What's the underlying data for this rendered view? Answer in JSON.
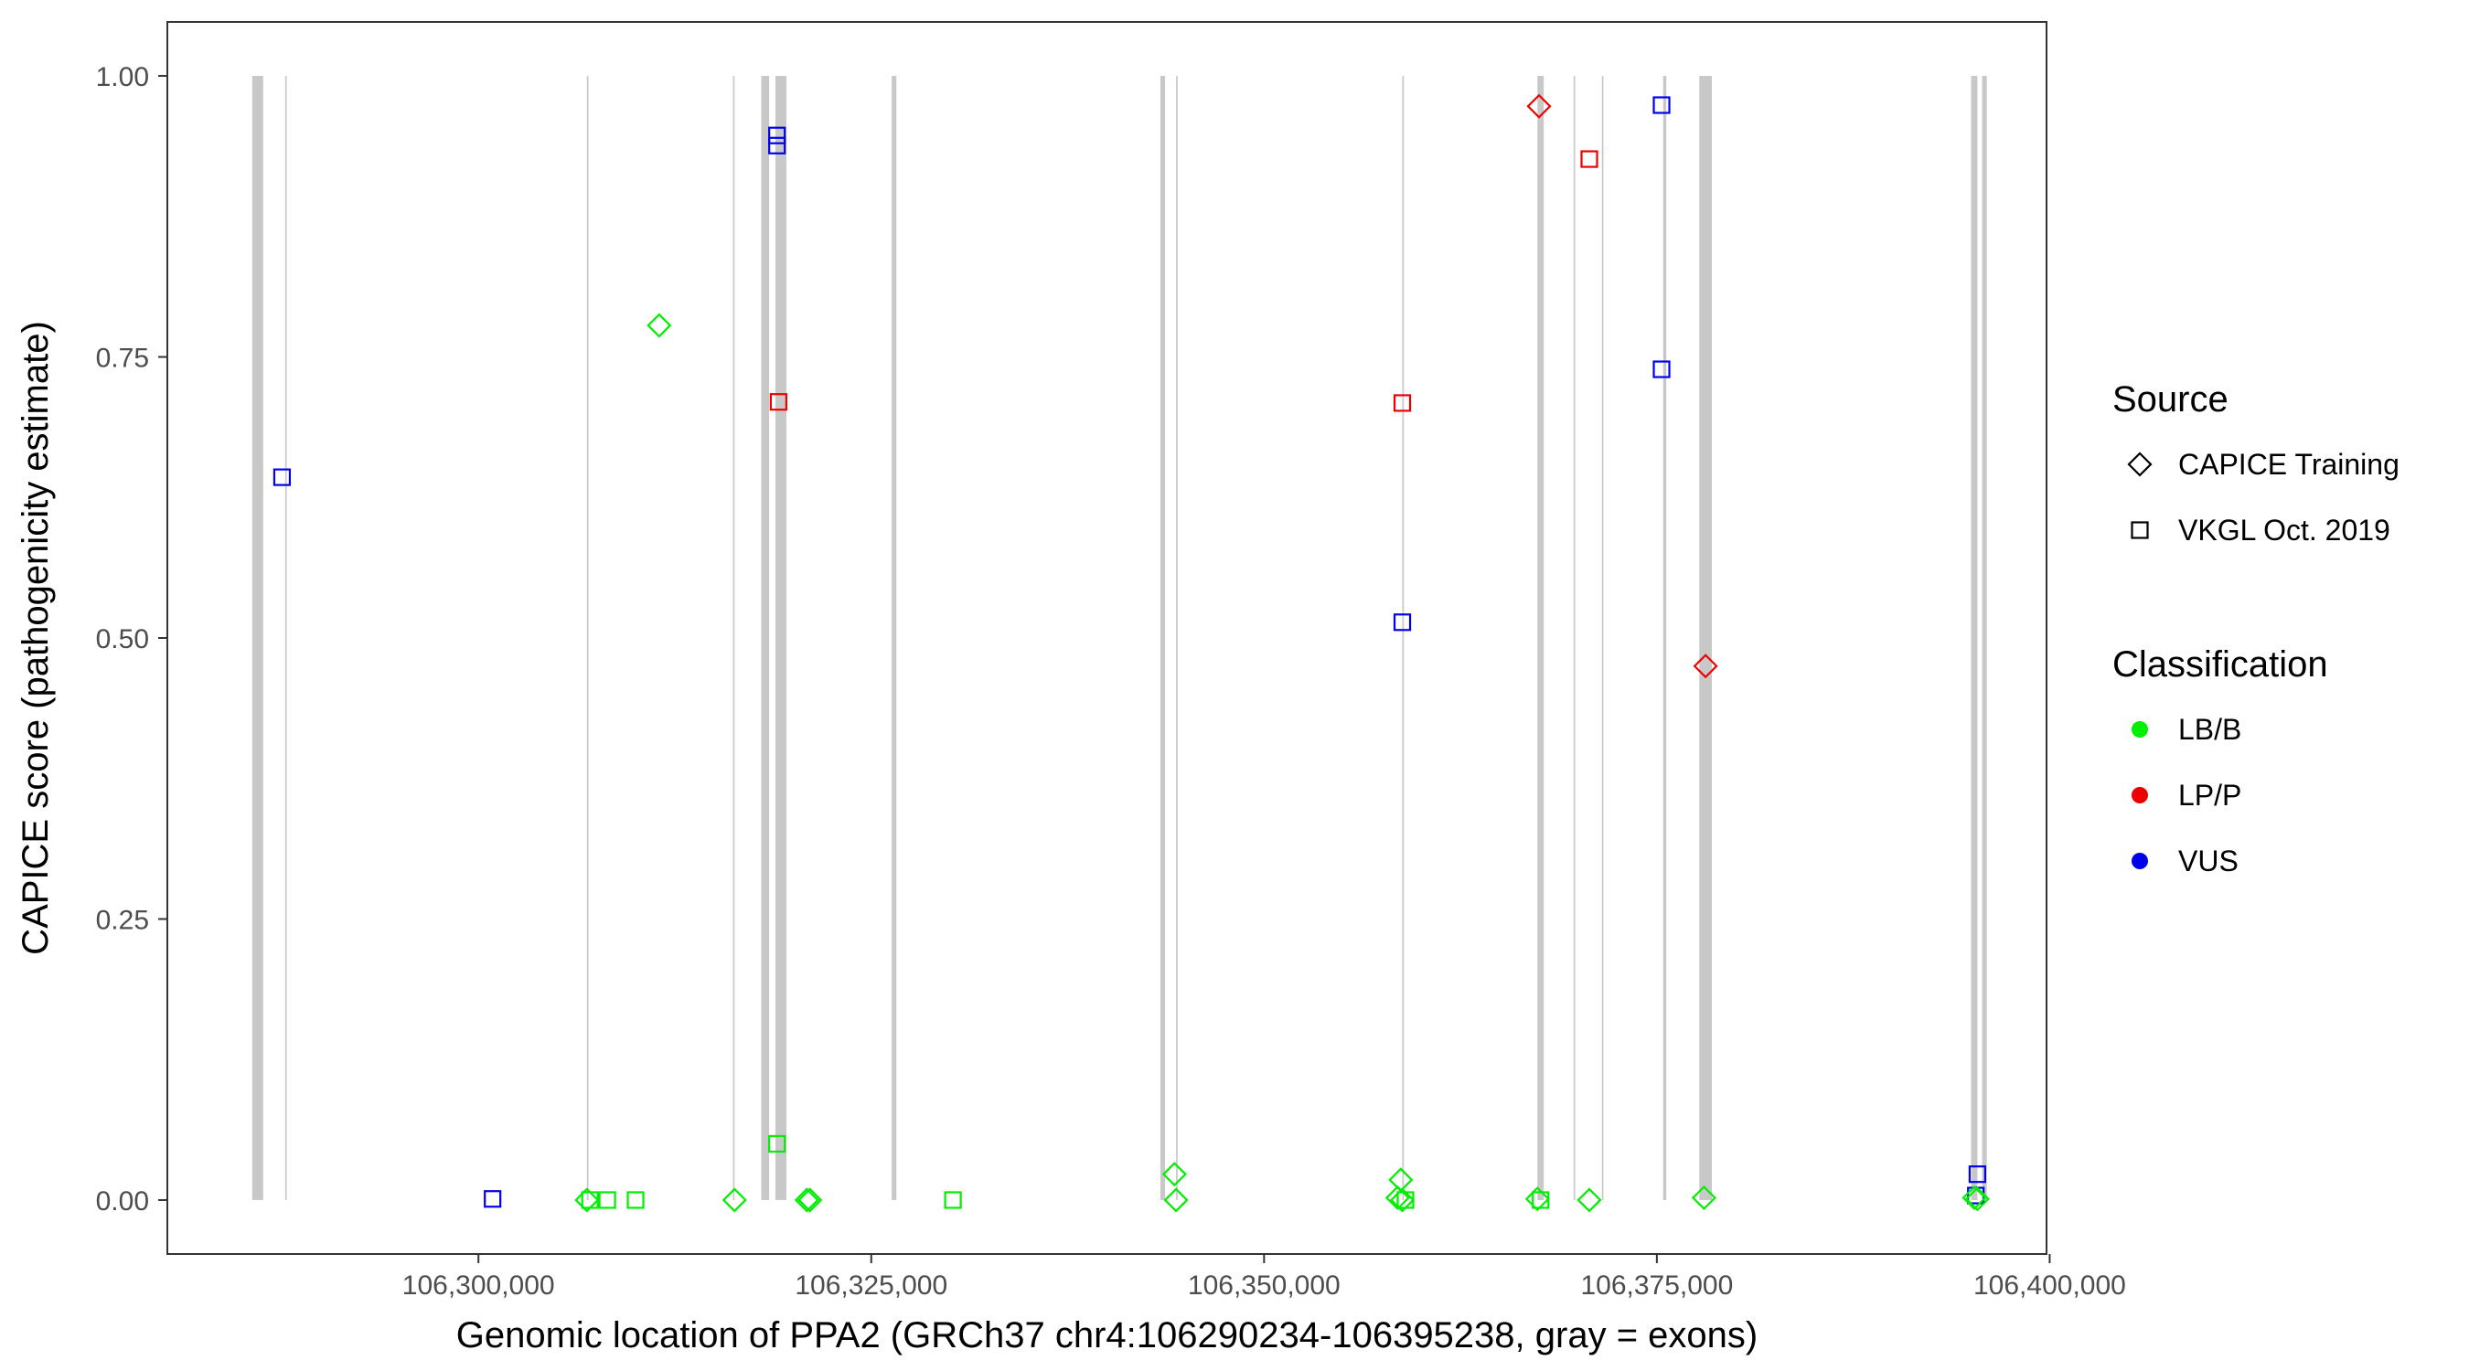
{
  "chart_data": {
    "type": "scatter",
    "title": "",
    "xlabel": "Genomic location of PPA2 (GRCh37 chr4:106290234-106395238, gray = exons)",
    "ylabel": "CAPICE score (pathogenicity estimate)",
    "xlim": [
      106280200,
      106399800
    ],
    "ylim": [
      -0.048,
      1.048
    ],
    "x_ticks": [
      106300000,
      106325000,
      106350000,
      106375000,
      106400000
    ],
    "x_tick_labels": [
      "106,300,000",
      "106,325,000",
      "106,350,000",
      "106,375,000",
      "106,400,000"
    ],
    "y_ticks": [
      0,
      0.25,
      0.5,
      0.75,
      1
    ],
    "y_tick_labels": [
      "0.00",
      "0.25",
      "0.50",
      "0.75",
      "1.00"
    ],
    "grid": false,
    "legend_position": "right",
    "exons": [
      {
        "start": 106285600,
        "end": 106286300
      },
      {
        "start": 106287700,
        "end": 106287800
      },
      {
        "start": 106306900,
        "end": 106307000
      },
      {
        "start": 106316200,
        "end": 106316300
      },
      {
        "start": 106318000,
        "end": 106318500
      },
      {
        "start": 106318900,
        "end": 106319600
      },
      {
        "start": 106326300,
        "end": 106326600
      },
      {
        "start": 106343400,
        "end": 106343700
      },
      {
        "start": 106344400,
        "end": 106344500
      },
      {
        "start": 106358800,
        "end": 106358900
      },
      {
        "start": 106367400,
        "end": 106367800
      },
      {
        "start": 106369700,
        "end": 106369800
      },
      {
        "start": 106371500,
        "end": 106371600
      },
      {
        "start": 106375400,
        "end": 106375600
      },
      {
        "start": 106377700,
        "end": 106378500
      },
      {
        "start": 106395000,
        "end": 106395400
      },
      {
        "start": 106395700,
        "end": 106396000
      }
    ],
    "legends": [
      {
        "title": "Source",
        "entries": [
          {
            "label": "CAPICE Training",
            "shape": "diamond"
          },
          {
            "label": "VKGL Oct. 2019",
            "shape": "square"
          }
        ]
      },
      {
        "title": "Classification",
        "entries": [
          {
            "label": "LB/B",
            "color": "#00ee00"
          },
          {
            "label": "LP/P",
            "color": "#ee0000"
          },
          {
            "label": "VUS",
            "color": "#0000ee"
          }
        ]
      }
    ],
    "colors": {
      "LB/B": "#00ee00",
      "LP/P": "#ee0000",
      "VUS": "#0000ee",
      "exon": "#c8c8c8"
    },
    "points": [
      {
        "x": 106287500,
        "y": 0.643,
        "source": "VKGL Oct. 2019",
        "class": "VUS"
      },
      {
        "x": 106300900,
        "y": 0.001,
        "source": "VKGL Oct. 2019",
        "class": "VUS"
      },
      {
        "x": 106306900,
        "y": 0.0,
        "source": "CAPICE Training",
        "class": "LB/B"
      },
      {
        "x": 106307100,
        "y": 0.0,
        "source": "VKGL Oct. 2019",
        "class": "LB/B"
      },
      {
        "x": 106308200,
        "y": 0.0,
        "source": "VKGL Oct. 2019",
        "class": "LB/B"
      },
      {
        "x": 106310000,
        "y": 0.0,
        "source": "VKGL Oct. 2019",
        "class": "LB/B"
      },
      {
        "x": 106311500,
        "y": 0.778,
        "source": "CAPICE Training",
        "class": "LB/B"
      },
      {
        "x": 106316300,
        "y": 0.0,
        "source": "CAPICE Training",
        "class": "LB/B"
      },
      {
        "x": 106319000,
        "y": 0.947,
        "source": "VKGL Oct. 2019",
        "class": "VUS"
      },
      {
        "x": 106319000,
        "y": 0.938,
        "source": "VKGL Oct. 2019",
        "class": "VUS"
      },
      {
        "x": 106319100,
        "y": 0.71,
        "source": "VKGL Oct. 2019",
        "class": "LP/P"
      },
      {
        "x": 106319000,
        "y": 0.05,
        "source": "VKGL Oct. 2019",
        "class": "LB/B"
      },
      {
        "x": 106320900,
        "y": 0.0,
        "source": "CAPICE Training",
        "class": "LB/B"
      },
      {
        "x": 106321100,
        "y": 0.0,
        "source": "CAPICE Training",
        "class": "LB/B"
      },
      {
        "x": 106330200,
        "y": 0.0,
        "source": "VKGL Oct. 2019",
        "class": "LB/B"
      },
      {
        "x": 106344300,
        "y": 0.023,
        "source": "CAPICE Training",
        "class": "LB/B"
      },
      {
        "x": 106344400,
        "y": 0.0,
        "source": "CAPICE Training",
        "class": "LB/B"
      },
      {
        "x": 106358700,
        "y": 0.018,
        "source": "CAPICE Training",
        "class": "LB/B"
      },
      {
        "x": 106358500,
        "y": 0.002,
        "source": "CAPICE Training",
        "class": "LB/B"
      },
      {
        "x": 106358800,
        "y": 0.0,
        "source": "CAPICE Training",
        "class": "LB/B"
      },
      {
        "x": 106359000,
        "y": 0.0,
        "source": "VKGL Oct. 2019",
        "class": "LB/B"
      },
      {
        "x": 106358800,
        "y": 0.709,
        "source": "VKGL Oct. 2019",
        "class": "LP/P"
      },
      {
        "x": 106358800,
        "y": 0.514,
        "source": "VKGL Oct. 2019",
        "class": "VUS"
      },
      {
        "x": 106367500,
        "y": 0.973,
        "source": "CAPICE Training",
        "class": "LP/P"
      },
      {
        "x": 106367400,
        "y": 0.001,
        "source": "CAPICE Training",
        "class": "LB/B"
      },
      {
        "x": 106367600,
        "y": 0.0,
        "source": "VKGL Oct. 2019",
        "class": "LB/B"
      },
      {
        "x": 106370700,
        "y": 0.926,
        "source": "VKGL Oct. 2019",
        "class": "LP/P"
      },
      {
        "x": 106370700,
        "y": 0.0,
        "source": "CAPICE Training",
        "class": "LB/B"
      },
      {
        "x": 106375300,
        "y": 0.974,
        "source": "VKGL Oct. 2019",
        "class": "VUS"
      },
      {
        "x": 106375300,
        "y": 0.739,
        "source": "VKGL Oct. 2019",
        "class": "VUS"
      },
      {
        "x": 106378100,
        "y": 0.475,
        "source": "CAPICE Training",
        "class": "LP/P"
      },
      {
        "x": 106378000,
        "y": 0.002,
        "source": "CAPICE Training",
        "class": "LB/B"
      },
      {
        "x": 106395400,
        "y": 0.023,
        "source": "VKGL Oct. 2019",
        "class": "VUS"
      },
      {
        "x": 106395300,
        "y": 0.004,
        "source": "VKGL Oct. 2019",
        "class": "VUS"
      },
      {
        "x": 106395200,
        "y": 0.002,
        "source": "CAPICE Training",
        "class": "LB/B"
      },
      {
        "x": 106395400,
        "y": 0.001,
        "source": "CAPICE Training",
        "class": "LB/B"
      }
    ]
  }
}
